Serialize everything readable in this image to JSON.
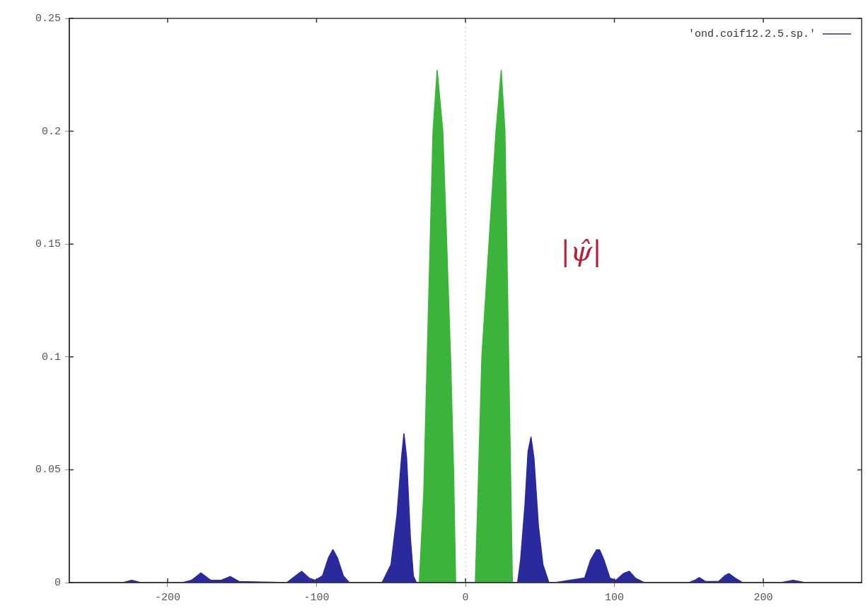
{
  "chart_data": {
    "type": "area",
    "series": [
      {
        "name": "'ond.coif12.2.5.sp.'",
        "color": "#2a2a9e",
        "x": [
          -266,
          -230,
          -224,
          -218,
          -190,
          -184,
          -177.6,
          -171,
          -164,
          -158,
          -152,
          -120,
          -114,
          -110,
          -105,
          -101,
          -96,
          -92,
          -89,
          -86,
          -82,
          -78,
          -60,
          -56,
          -50,
          -46,
          -43,
          -41.3,
          -39.5,
          -37,
          -35,
          -33,
          35,
          37,
          40,
          42,
          44,
          46,
          49,
          52,
          56,
          60,
          80,
          84,
          88,
          90,
          93,
          97,
          101,
          106,
          110,
          114,
          120,
          150,
          154,
          157,
          161,
          170,
          174,
          177,
          181,
          186,
          212,
          220,
          228,
          266
        ],
        "values": [
          0,
          0,
          0.001,
          0,
          0,
          0.001,
          0.0043,
          0.001,
          0.001,
          0.0027,
          0.0005,
          0,
          0.003,
          0.005,
          0.002,
          0.001,
          0.003,
          0.011,
          0.0146,
          0.011,
          0.003,
          0,
          0,
          0,
          0.008,
          0.03,
          0.055,
          0.066,
          0.055,
          0.02,
          0.003,
          0,
          0,
          0.01,
          0.035,
          0.058,
          0.0645,
          0.055,
          0.025,
          0.008,
          0,
          0,
          0.002,
          0.01,
          0.0145,
          0.0146,
          0.01,
          0.002,
          0.001,
          0.004,
          0.005,
          0.002,
          0,
          0,
          0.001,
          0.0022,
          0.0005,
          0.0005,
          0.003,
          0.004,
          0.002,
          0,
          0,
          0.001,
          0,
          0
        ]
      },
      {
        "color": "#3cb43c",
        "x": [
          -31,
          -28,
          -25.7,
          -21.8,
          -19,
          -15.2,
          -10,
          -8,
          -6.6,
          6.6,
          8,
          11,
          20.5,
          24,
          26.5,
          29,
          30.5,
          31.5
        ],
        "values": [
          0,
          0.04,
          0.1,
          0.2,
          0.227,
          0.2,
          0.1,
          0.05,
          0,
          0,
          0.03,
          0.1,
          0.2,
          0.227,
          0.2,
          0.1,
          0.04,
          0
        ]
      }
    ],
    "xlim": [
      -266,
      266
    ],
    "xticks": [
      -200,
      -100,
      0,
      100,
      200
    ],
    "ylim": [
      0,
      0.25
    ],
    "yticks": [
      0,
      0.05,
      0.1,
      0.15,
      0.2,
      0.25
    ],
    "grid": false,
    "legend": "top right",
    "ref_lines": [
      {
        "axis": "x",
        "value": 0,
        "color": "#bbbbbb",
        "line_style": "dotted"
      }
    ],
    "annotations": [
      "|ψ̂|"
    ]
  }
}
